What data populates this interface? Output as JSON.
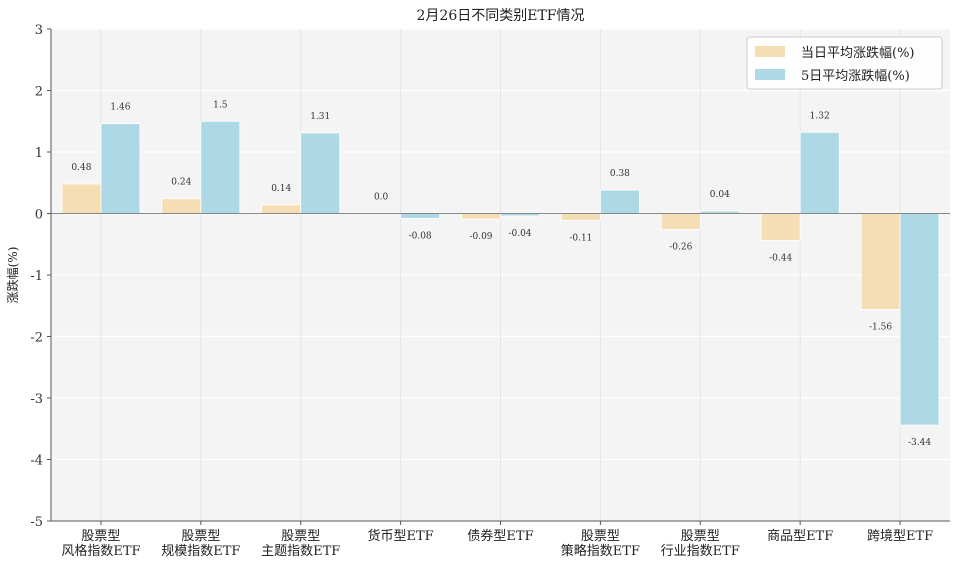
{
  "chart_data": {
    "type": "bar",
    "title": "2月26日不同类别ETF情况",
    "xlabel": "",
    "ylabel": "涨跌幅(%)",
    "ylim": [
      -5,
      3
    ],
    "yticks": [
      3,
      2,
      1,
      0,
      -1,
      -2,
      -3,
      -4,
      -5
    ],
    "grid": true,
    "legend_position": "top-right",
    "categories": [
      [
        "股票型",
        "风格指数ETF"
      ],
      [
        "股票型",
        "规模指数ETF"
      ],
      [
        "股票型",
        "主题指数ETF"
      ],
      [
        "货币型ETF"
      ],
      [
        "债券型ETF"
      ],
      [
        "股票型",
        "策略指数ETF"
      ],
      [
        "股票型",
        "行业指数ETF"
      ],
      [
        "商品型ETF"
      ],
      [
        "跨境型ETF"
      ]
    ],
    "series": [
      {
        "name": "当日平均涨跌幅(%)",
        "color": "#f5deb3",
        "values": [
          0.48,
          0.24,
          0.14,
          0.0,
          -0.09,
          -0.11,
          -0.26,
          -0.44,
          -1.56
        ],
        "labels": [
          "0.48",
          "0.24",
          "0.14",
          "0.0",
          "-0.09",
          "-0.11",
          "-0.26",
          "-0.44",
          "-1.56"
        ]
      },
      {
        "name": "5日平均涨跌幅(%)",
        "color": "#add8e6",
        "values": [
          1.46,
          1.5,
          1.31,
          -0.08,
          -0.04,
          0.38,
          0.04,
          1.32,
          -3.44
        ],
        "labels": [
          "1.46",
          "1.5",
          "1.31",
          "-0.08",
          "-0.04",
          "0.38",
          "0.04",
          "1.32",
          "-3.44"
        ]
      }
    ]
  }
}
